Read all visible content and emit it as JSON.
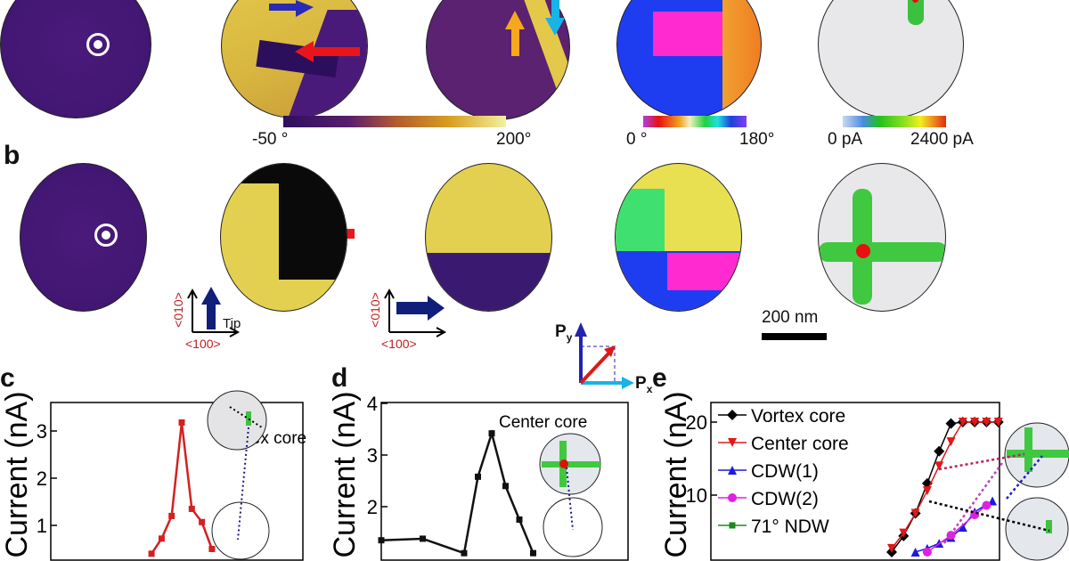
{
  "panel_labels": {
    "b": "b",
    "c": "c",
    "d": "d",
    "e": "e"
  },
  "colorbars": {
    "phase": {
      "min_label": "-50 °",
      "max_label": "200°"
    },
    "angle": {
      "min_label": "0 °",
      "max_label": "180°"
    },
    "current": {
      "min_label": "0 pA",
      "max_label": "2400 pA"
    }
  },
  "axes_legends": {
    "axis_010": "<010>",
    "axis_100": "<100>",
    "tip": "Tip",
    "px": "P",
    "px_sub": "x",
    "py": "P",
    "py_sub": "y"
  },
  "scale_bar": "200 nm",
  "colors": {
    "red_arrow": "#e8161b",
    "blue_arrow": "#2a2ab8",
    "orange_arrow": "#f5a81c",
    "cyan_arrow": "#19b3e6",
    "navy": "#0f1f7a"
  },
  "chart_data": [
    {
      "id": "c",
      "type": "line",
      "title": "Vortex core",
      "ylabel": "Current (nA)",
      "yticks": [
        "1",
        "2",
        "3"
      ],
      "ylim": [
        0,
        3.5
      ],
      "series": [
        {
          "name": "Vortex core",
          "color": "#d42020",
          "x": [
            -3,
            -2,
            -1,
            0,
            1,
            2,
            3
          ],
          "y": [
            0.4,
            0.72,
            1.2,
            3.18,
            1.35,
            1.07,
            0.5
          ]
        }
      ]
    },
    {
      "id": "d",
      "type": "line",
      "title": "Center core",
      "ylabel": "Current (nA)",
      "yticks": [
        "2",
        "3",
        "4"
      ],
      "ylim": [
        1,
        4
      ],
      "series": [
        {
          "name": "Center core",
          "color": "#111111",
          "x": [
            -8,
            -5,
            -2,
            -1,
            0,
            1,
            2,
            3
          ],
          "y": [
            1.35,
            1.38,
            1.1,
            2.58,
            3.42,
            2.4,
            1.75,
            1.1
          ]
        }
      ]
    },
    {
      "id": "e",
      "type": "line",
      "ylabel": "Current (nA)",
      "yticks": [
        "10",
        "20"
      ],
      "ylim": [
        0,
        22
      ],
      "legend_position": "top-left",
      "series": [
        {
          "name": "Vortex core",
          "color": "#000000",
          "marker": "diamond",
          "x": [
            0,
            1,
            2,
            3,
            4,
            5,
            6,
            7,
            8,
            9
          ],
          "y": [
            2.2,
            4.4,
            7.5,
            11.6,
            16,
            19.8,
            20,
            20,
            20,
            20
          ]
        },
        {
          "name": "Center core",
          "color": "#e01818",
          "marker": "triangle-down",
          "x": [
            0,
            1,
            2,
            3,
            4,
            5,
            6,
            7,
            8,
            9
          ],
          "y": [
            2.7,
            4.8,
            7.5,
            10.6,
            14,
            17.3,
            20,
            20,
            20,
            20
          ]
        },
        {
          "name": "CDW(1)",
          "color": "#1a1ae0",
          "marker": "triangle-up",
          "x": [
            2,
            3,
            4,
            5,
            6,
            7,
            8.5
          ],
          "y": [
            2.2,
            2.7,
            3.4,
            4.2,
            5.6,
            7.7,
            9.2
          ]
        },
        {
          "name": "CDW(2)",
          "color": "#e020e0",
          "marker": "circle",
          "x": [
            3,
            5,
            7,
            8
          ],
          "y": [
            2.2,
            4.5,
            7.3,
            8.6
          ]
        },
        {
          "name": "71° NDW",
          "color": "#1a8a1a",
          "marker": "square",
          "x": [],
          "y": []
        }
      ]
    }
  ]
}
